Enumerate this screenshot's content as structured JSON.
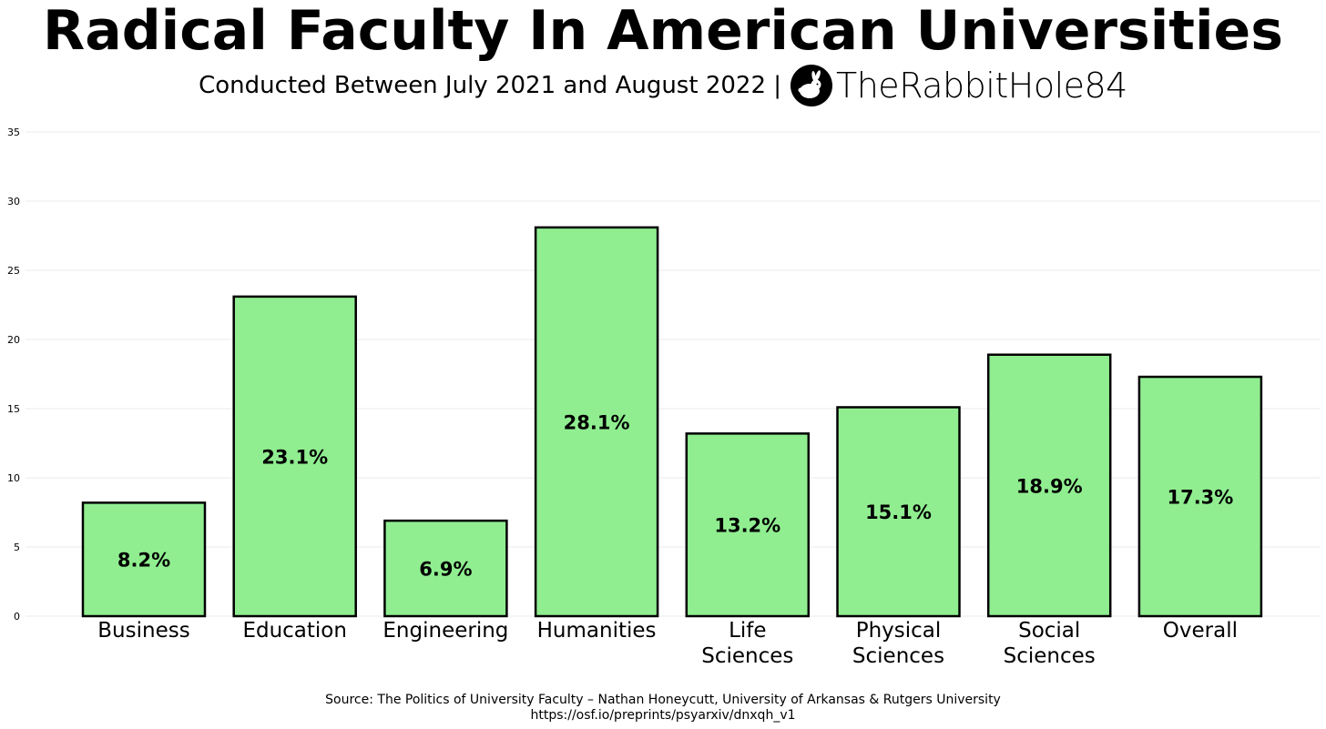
{
  "header": {
    "title": "Radical Faculty In American Universities",
    "subtitle": "Conducted Between July 2021 and August 2022 |",
    "brand": "TheRabbitHole84"
  },
  "chart_data": {
    "type": "bar",
    "title": "Radical Faculty In American Universities",
    "xlabel": "",
    "ylabel": "",
    "ylim": [
      0,
      35
    ],
    "yticks": [
      0,
      5,
      10,
      15,
      20,
      25,
      30,
      35
    ],
    "grid": true,
    "categories": [
      [
        "Business"
      ],
      [
        "Education"
      ],
      [
        "Engineering"
      ],
      [
        "Humanities"
      ],
      [
        "Life",
        "Sciences"
      ],
      [
        "Physical",
        "Sciences"
      ],
      [
        "Social",
        "Sciences"
      ],
      [
        "Overall"
      ]
    ],
    "values": [
      8.2,
      23.1,
      6.9,
      28.1,
      13.2,
      15.1,
      18.9,
      17.3
    ],
    "value_labels": [
      "8.2%",
      "23.1%",
      "6.9%",
      "28.1%",
      "13.2%",
      "15.1%",
      "18.9%",
      "17.3%"
    ],
    "bar_color": "#90ee90",
    "bar_edge_color": "#000000",
    "grid_color": "#ebebeb"
  },
  "footer": {
    "source": "Source: The Politics of University Faculty – Nathan Honeycutt, University of Arkansas & Rutgers University",
    "url": "https://osf.io/preprints/psyarxiv/dnxqh_v1"
  }
}
